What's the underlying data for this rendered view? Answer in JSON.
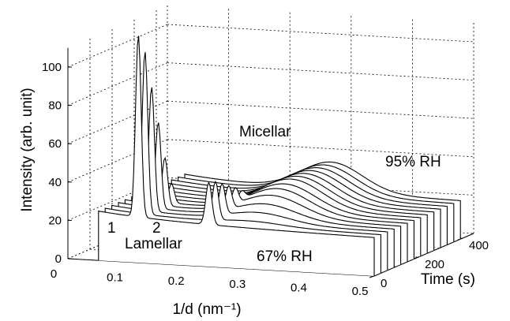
{
  "chart_data": {
    "type": "line",
    "style": "3d-waterfall",
    "title": "",
    "xlabel": "1/d (nm⁻¹)",
    "ylabel": "Time (s)",
    "zlabel": "Intensity (arb. unit)",
    "xlim": [
      0,
      0.5
    ],
    "ylim": [
      0,
      400
    ],
    "zlim": [
      0,
      100
    ],
    "x_ticks": [
      "0",
      "0.1",
      "0.2",
      "0.3",
      "0.4",
      "0.5"
    ],
    "y_ticks": [
      "0",
      "200",
      "400"
    ],
    "z_ticks": [
      "0",
      "20",
      "40",
      "60",
      "80",
      "100"
    ],
    "grid": true,
    "annotations": {
      "micellar": "Micellar",
      "lamellar": "Lamellar",
      "rh_high": "95% RH",
      "rh_low": "67% RH",
      "peak1": "1",
      "peak2": "2"
    },
    "series_times": [
      0,
      30,
      60,
      90,
      120,
      150,
      180,
      210,
      240,
      270,
      300,
      330,
      360,
      390
    ],
    "series_shape": {
      "baseline": 22,
      "lamellar_peak1_x": 0.115,
      "lamellar_peak2_x": 0.23,
      "lamellar_peak1_height": [
        95,
        85,
        65,
        45,
        25,
        10,
        0,
        0,
        0,
        0,
        0,
        0,
        0,
        0
      ],
      "lamellar_peak2_height": [
        22,
        20,
        16,
        12,
        8,
        4,
        0,
        0,
        0,
        0,
        0,
        0,
        0,
        0
      ],
      "micellar_peak_x": 0.29,
      "micellar_peak_height": [
        0,
        2,
        5,
        8,
        11,
        13,
        14,
        15,
        15,
        15,
        15,
        15,
        15,
        15
      ]
    }
  }
}
